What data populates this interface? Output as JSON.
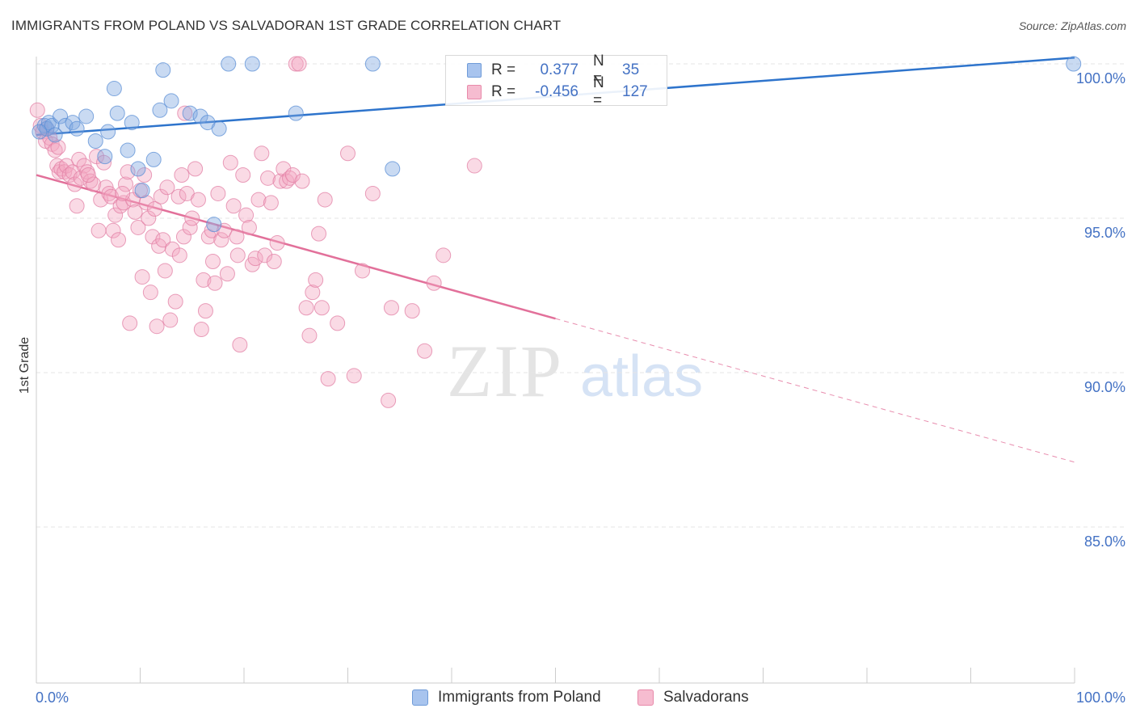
{
  "header": {
    "title": "IMMIGRANTS FROM POLAND VS SALVADORAN 1ST GRADE CORRELATION CHART",
    "source": "Source: ZipAtlas.com"
  },
  "watermark": {
    "zip": "ZIP",
    "atlas": "atlas"
  },
  "legend": {
    "rows": [
      {
        "r_label": "R =",
        "r_value": "0.377",
        "n_label": "N =",
        "n_value": "35",
        "color": "#a8c4ee",
        "border": "#6f9bd8"
      },
      {
        "r_label": "R =",
        "r_value": "-0.456",
        "n_label": "N =",
        "n_value": "127",
        "color": "#f6bcd0",
        "border": "#e88aaa"
      }
    ]
  },
  "bottom_legend": [
    {
      "label": "Immigrants from Poland",
      "color": "#a8c4ee",
      "border": "#6f9bd8"
    },
    {
      "label": "Salvadorans",
      "color": "#f6bcd0",
      "border": "#e88aaa"
    }
  ],
  "chart_data": {
    "type": "scatter",
    "title": "IMMIGRANTS FROM POLAND VS SALVADORAN 1ST GRADE CORRELATION CHART",
    "xlabel": "",
    "ylabel": "1st Grade",
    "xlim": [
      0,
      100
    ],
    "ylim": [
      80.5,
      100.9
    ],
    "x_tick_labels": [
      "0.0%",
      "100.0%"
    ],
    "y_ticks": [
      {
        "value": 100,
        "label": "100.0%"
      },
      {
        "value": 95,
        "label": "95.0%"
      },
      {
        "value": 90,
        "label": "90.0%"
      },
      {
        "value": 85,
        "label": "85.0%"
      }
    ],
    "grid": true,
    "legend_placement": "top-center",
    "series": [
      {
        "name": "Immigrants from Poland",
        "color": "#7ea6e0",
        "stroke": "#5b8fd6",
        "line_color": "#2e74cc",
        "trend": {
          "x0": 0,
          "y0": 97.7,
          "x1": 100,
          "y1": 100.2,
          "solid_until": 100
        },
        "points": [
          [
            0.8,
            98.0
          ],
          [
            1.0,
            97.9
          ],
          [
            1.2,
            98.1
          ],
          [
            1.5,
            98.0
          ],
          [
            1.8,
            97.7
          ],
          [
            2.3,
            98.3
          ],
          [
            2.8,
            98.0
          ],
          [
            3.5,
            98.1
          ],
          [
            3.9,
            97.9
          ],
          [
            4.8,
            98.3
          ],
          [
            5.7,
            97.5
          ],
          [
            6.6,
            97.0
          ],
          [
            6.9,
            97.8
          ],
          [
            7.5,
            99.2
          ],
          [
            7.8,
            98.4
          ],
          [
            8.8,
            97.2
          ],
          [
            9.2,
            98.1
          ],
          [
            9.8,
            96.6
          ],
          [
            10.2,
            95.9
          ],
          [
            11.3,
            96.9
          ],
          [
            11.9,
            98.5
          ],
          [
            12.2,
            99.8
          ],
          [
            13.0,
            98.8
          ],
          [
            14.8,
            98.4
          ],
          [
            15.8,
            98.3
          ],
          [
            16.5,
            98.1
          ],
          [
            17.1,
            94.8
          ],
          [
            17.6,
            97.9
          ],
          [
            18.5,
            100.0
          ],
          [
            20.8,
            100.0
          ],
          [
            25.0,
            98.4
          ],
          [
            32.4,
            100.0
          ],
          [
            34.3,
            96.6
          ],
          [
            99.9,
            100.0
          ],
          [
            0.3,
            97.8
          ]
        ]
      },
      {
        "name": "Salvadorans",
        "color": "#f2a8c2",
        "stroke": "#e27fa4",
        "line_color": "#e2709a",
        "trend": {
          "x0": 0,
          "y0": 96.4,
          "x1": 100,
          "y1": 87.1,
          "solid_until": 50
        },
        "points": [
          [
            0.1,
            98.5
          ],
          [
            0.4,
            98.0
          ],
          [
            0.6,
            97.8
          ],
          [
            0.9,
            97.5
          ],
          [
            1.3,
            97.6
          ],
          [
            1.5,
            97.4
          ],
          [
            1.8,
            97.2
          ],
          [
            2.0,
            96.7
          ],
          [
            2.2,
            96.5
          ],
          [
            2.4,
            96.6
          ],
          [
            2.7,
            96.5
          ],
          [
            2.9,
            96.7
          ],
          [
            3.2,
            96.4
          ],
          [
            3.5,
            96.5
          ],
          [
            3.7,
            96.1
          ],
          [
            3.9,
            95.4
          ],
          [
            4.1,
            96.9
          ],
          [
            4.3,
            96.3
          ],
          [
            4.6,
            96.7
          ],
          [
            4.9,
            96.5
          ],
          [
            5.2,
            96.2
          ],
          [
            5.5,
            96.1
          ],
          [
            5.8,
            97.0
          ],
          [
            6.0,
            94.6
          ],
          [
            6.2,
            95.6
          ],
          [
            6.5,
            96.8
          ],
          [
            6.7,
            96.0
          ],
          [
            7.0,
            95.8
          ],
          [
            7.2,
            95.7
          ],
          [
            7.4,
            94.6
          ],
          [
            7.6,
            95.1
          ],
          [
            7.9,
            94.3
          ],
          [
            8.1,
            95.4
          ],
          [
            8.4,
            95.5
          ],
          [
            8.6,
            96.1
          ],
          [
            8.8,
            96.5
          ],
          [
            9.0,
            91.6
          ],
          [
            9.3,
            95.6
          ],
          [
            9.5,
            95.2
          ],
          [
            9.8,
            94.7
          ],
          [
            10.0,
            95.9
          ],
          [
            10.2,
            93.1
          ],
          [
            10.4,
            96.4
          ],
          [
            10.6,
            95.5
          ],
          [
            10.8,
            95.0
          ],
          [
            11.0,
            92.6
          ],
          [
            11.2,
            94.4
          ],
          [
            11.4,
            95.3
          ],
          [
            11.6,
            91.5
          ],
          [
            11.8,
            94.1
          ],
          [
            12.0,
            95.7
          ],
          [
            12.2,
            94.3
          ],
          [
            12.4,
            93.3
          ],
          [
            12.6,
            96.0
          ],
          [
            12.9,
            91.7
          ],
          [
            13.1,
            94.0
          ],
          [
            13.4,
            92.3
          ],
          [
            13.7,
            95.7
          ],
          [
            14.0,
            96.4
          ],
          [
            14.2,
            94.4
          ],
          [
            14.5,
            95.8
          ],
          [
            14.8,
            94.7
          ],
          [
            15.0,
            95.0
          ],
          [
            15.3,
            96.6
          ],
          [
            15.6,
            95.6
          ],
          [
            15.9,
            91.4
          ],
          [
            16.1,
            93.0
          ],
          [
            16.3,
            92.0
          ],
          [
            16.6,
            94.4
          ],
          [
            16.9,
            94.6
          ],
          [
            17.2,
            92.9
          ],
          [
            17.5,
            95.8
          ],
          [
            17.8,
            94.3
          ],
          [
            18.1,
            94.6
          ],
          [
            18.4,
            93.2
          ],
          [
            18.7,
            96.8
          ],
          [
            19.0,
            95.4
          ],
          [
            19.3,
            94.4
          ],
          [
            19.6,
            90.9
          ],
          [
            19.9,
            96.4
          ],
          [
            20.2,
            95.1
          ],
          [
            20.5,
            94.7
          ],
          [
            20.8,
            93.5
          ],
          [
            21.1,
            93.7
          ],
          [
            21.4,
            95.6
          ],
          [
            21.7,
            97.1
          ],
          [
            22.0,
            93.8
          ],
          [
            22.3,
            96.3
          ],
          [
            22.6,
            95.5
          ],
          [
            22.9,
            93.6
          ],
          [
            23.2,
            94.2
          ],
          [
            23.5,
            96.2
          ],
          [
            23.8,
            96.6
          ],
          [
            24.1,
            96.2
          ],
          [
            24.4,
            96.3
          ],
          [
            24.7,
            96.4
          ],
          [
            25.0,
            100.0
          ],
          [
            25.3,
            100.0
          ],
          [
            25.6,
            96.2
          ],
          [
            26.0,
            92.1
          ],
          [
            26.3,
            91.2
          ],
          [
            26.6,
            92.6
          ],
          [
            26.9,
            93.0
          ],
          [
            27.2,
            94.5
          ],
          [
            27.5,
            92.1
          ],
          [
            27.8,
            95.6
          ],
          [
            28.1,
            89.8
          ],
          [
            29.0,
            91.6
          ],
          [
            30.0,
            97.1
          ],
          [
            30.6,
            89.9
          ],
          [
            31.4,
            93.3
          ],
          [
            32.4,
            95.8
          ],
          [
            33.9,
            89.1
          ],
          [
            34.2,
            92.1
          ],
          [
            36.2,
            92.0
          ],
          [
            37.4,
            90.7
          ],
          [
            38.3,
            92.9
          ],
          [
            39.2,
            93.8
          ],
          [
            42.2,
            96.7
          ],
          [
            1.0,
            97.9
          ],
          [
            2.1,
            97.3
          ],
          [
            5.0,
            96.4
          ],
          [
            8.3,
            95.8
          ],
          [
            13.8,
            93.8
          ],
          [
            17.0,
            93.6
          ],
          [
            19.4,
            93.8
          ],
          [
            14.3,
            98.4
          ]
        ]
      }
    ]
  }
}
